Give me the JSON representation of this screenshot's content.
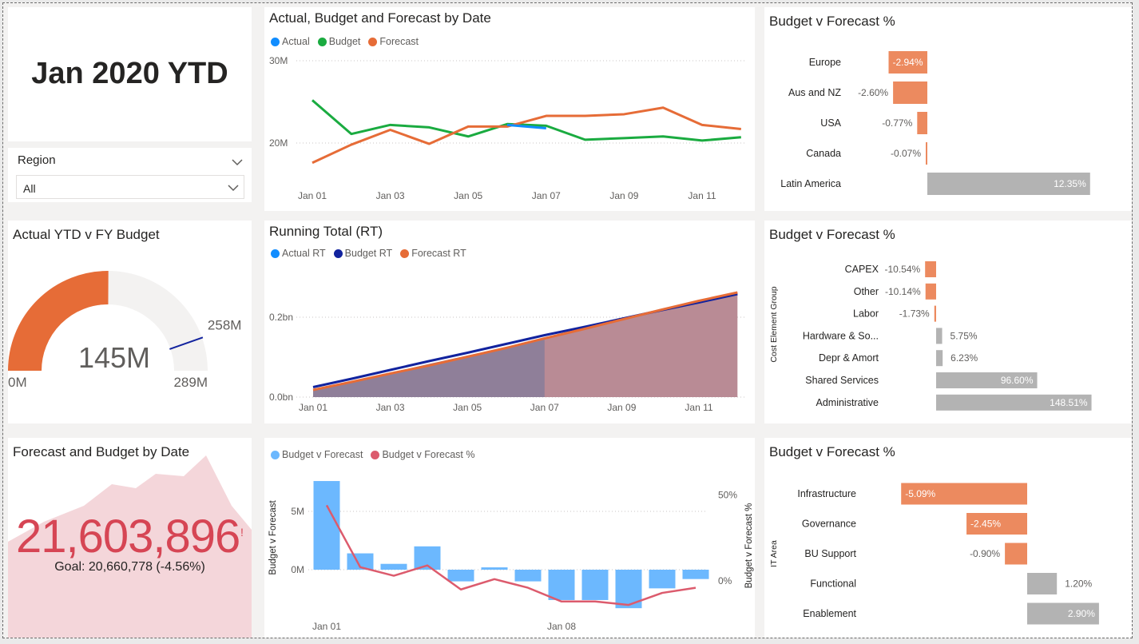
{
  "header": {
    "title": "Jan 2020 YTD"
  },
  "slicer": {
    "label": "Region",
    "value": "All"
  },
  "gauge": {
    "title": "Actual YTD v FY Budget",
    "value_label": "145M",
    "min_label": "0M",
    "max_label": "289M",
    "target_label": "258M",
    "value": 145,
    "min": 0,
    "max": 289,
    "target": 258,
    "colors": {
      "fill": "#e66c37",
      "track": "#f3f2f1",
      "target": "#12239e"
    }
  },
  "kpi": {
    "title": "Forecast and Budget by Date",
    "value": "21,603,896",
    "alert": "!",
    "goal": "Goal: 20,660,778 (-4.56%)",
    "colors": {
      "value": "#d64554",
      "area": "#f4d6da"
    }
  },
  "icons": {
    "slicer_header": "chevron-down-icon",
    "slicer_dropdown": "chevron-down-icon"
  },
  "chart_line": {
    "title": "Actual, Budget and Forecast by Date",
    "legend": [
      "Actual",
      "Budget",
      "Forecast"
    ],
    "colors": {
      "Actual": "#118dff",
      "Budget": "#1aab40",
      "Forecast": "#e66c37"
    },
    "y_ticks": [
      "30M",
      "20M"
    ],
    "x_ticks": [
      "Jan 01",
      "Jan 03",
      "Jan 05",
      "Jan 07",
      "Jan 09",
      "Jan 11"
    ]
  },
  "chart_rt": {
    "title": "Running Total (RT)",
    "legend": [
      "Actual RT",
      "Budget RT",
      "Forecast RT"
    ],
    "colors": {
      "Actual RT": "#118dff",
      "Budget RT": "#12239e",
      "Forecast RT": "#e66c37"
    },
    "y_ticks": [
      "0.2bn",
      "0.0bn"
    ],
    "x_ticks": [
      "Jan 01",
      "Jan 03",
      "Jan 05",
      "Jan 07",
      "Jan 09",
      "Jan 11"
    ]
  },
  "chart_combo": {
    "legend": [
      "Budget v Forecast",
      "Budget v Forecast %"
    ],
    "colors": {
      "bar": "#6cb8fe",
      "line": "#dc5b6d"
    },
    "y_title": "Budget v Forecast",
    "y2_title": "Budget v Forecast %",
    "y_ticks": [
      "5M",
      "0M"
    ],
    "y2_ticks": [
      "50%",
      "0%"
    ],
    "x_ticks": [
      "Jan 01",
      "Jan 08"
    ]
  },
  "region_bars": {
    "title": "Budget v Forecast %",
    "colors": {
      "negative": "#ec8a5f",
      "positive": "#b3b3b3"
    },
    "items": [
      {
        "label": "Europe",
        "value": -2.94,
        "text": "-2.94%"
      },
      {
        "label": "Aus and NZ",
        "value": -2.6,
        "text": "-2.60%"
      },
      {
        "label": "USA",
        "value": -0.77,
        "text": "-0.77%"
      },
      {
        "label": "Canada",
        "value": -0.07,
        "text": "-0.07%"
      },
      {
        "label": "Latin America",
        "value": 12.35,
        "text": "12.35%"
      }
    ]
  },
  "cost_bars": {
    "title": "Budget v Forecast %",
    "axis_title": "Cost Element Group",
    "items": [
      {
        "label": "CAPEX",
        "value": -10.54,
        "text": "-10.54%"
      },
      {
        "label": "Other",
        "value": -10.14,
        "text": "-10.14%"
      },
      {
        "label": "Labor",
        "value": -1.73,
        "text": "-1.73%"
      },
      {
        "label": "Hardware & So...",
        "value": 5.75,
        "text": "5.75%"
      },
      {
        "label": "Depr & Amort",
        "value": 6.23,
        "text": "6.23%"
      },
      {
        "label": "Shared Services",
        "value": 96.6,
        "text": "96.60%"
      },
      {
        "label": "Administrative",
        "value": 148.51,
        "text": "148.51%"
      }
    ]
  },
  "it_bars": {
    "title": "Budget v Forecast %",
    "axis_title": "IT Area",
    "items": [
      {
        "label": "Infrastructure",
        "value": -5.09,
        "text": "-5.09%"
      },
      {
        "label": "Governance",
        "value": -2.45,
        "text": "-2.45%"
      },
      {
        "label": "BU Support",
        "value": -0.9,
        "text": "-0.90%"
      },
      {
        "label": "Functional",
        "value": 1.2,
        "text": "1.20%"
      },
      {
        "label": "Enablement",
        "value": 2.9,
        "text": "2.90%"
      }
    ]
  },
  "chart_data": [
    {
      "type": "line",
      "title": "Actual, Budget and Forecast by Date",
      "x": [
        "Jan 01",
        "Jan 02",
        "Jan 03",
        "Jan 04",
        "Jan 05",
        "Jan 06",
        "Jan 07",
        "Jan 08",
        "Jan 09",
        "Jan 10",
        "Jan 11",
        "Jan 12"
      ],
      "ylim": [
        15,
        32
      ],
      "series": [
        {
          "name": "Actual",
          "values": [
            null,
            null,
            null,
            null,
            null,
            22.2,
            21.8,
            null,
            null,
            null,
            null,
            null
          ]
        },
        {
          "name": "Budget",
          "values": [
            25.2,
            21.1,
            22.2,
            21.9,
            20.8,
            22.3,
            22.1,
            20.4,
            20.6,
            20.8,
            20.3,
            20.7
          ]
        },
        {
          "name": "Forecast",
          "values": [
            17.6,
            19.8,
            21.6,
            19.9,
            22.0,
            22.0,
            23.3,
            23.3,
            23.5,
            24.3,
            22.2,
            21.7
          ]
        }
      ]
    },
    {
      "type": "area",
      "title": "Running Total (RT)",
      "x": [
        "Jan 01",
        "Jan 02",
        "Jan 03",
        "Jan 04",
        "Jan 05",
        "Jan 06",
        "Jan 07",
        "Jan 08",
        "Jan 09",
        "Jan 10",
        "Jan 11",
        "Jan 12"
      ],
      "ylim": [
        0,
        0.33
      ],
      "series": [
        {
          "name": "Actual RT",
          "values": [
            0.018,
            0.039,
            0.061,
            0.083,
            0.104,
            0.125,
            0.145,
            null,
            null,
            null,
            null,
            null
          ]
        },
        {
          "name": "Budget RT",
          "values": [
            0.025,
            0.046,
            0.068,
            0.09,
            0.111,
            0.133,
            0.155,
            0.175,
            0.196,
            0.217,
            0.237,
            0.258
          ]
        },
        {
          "name": "Forecast RT",
          "values": [
            0.018,
            0.038,
            0.059,
            0.079,
            0.101,
            0.123,
            0.147,
            0.17,
            0.194,
            0.218,
            0.241,
            0.262
          ]
        }
      ]
    },
    {
      "type": "bar",
      "title": "",
      "x": [
        "Jan 01",
        "Jan 02",
        "Jan 03",
        "Jan 04",
        "Jan 05",
        "Jan 06",
        "Jan 07",
        "Jan 08",
        "Jan 09",
        "Jan 10",
        "Jan 11",
        "Jan 12"
      ],
      "series": [
        {
          "name": "Budget v Forecast",
          "values": [
            7.6,
            1.4,
            0.5,
            2.0,
            -1.0,
            0.2,
            -1.0,
            -2.6,
            -2.6,
            -3.3,
            -1.6,
            -0.8
          ]
        },
        {
          "name": "Budget v Forecast %",
          "values": [
            44,
            8,
            3,
            9,
            -5,
            1,
            -4,
            -12,
            -12,
            -14,
            -7,
            -4
          ]
        }
      ],
      "ylim": [
        -4,
        8
      ],
      "y2lim": [
        -20,
        55
      ]
    },
    {
      "type": "bar",
      "title": "Budget v Forecast %",
      "categories": [
        "Europe",
        "Aus and NZ",
        "USA",
        "Canada",
        "Latin America"
      ],
      "values": [
        -2.94,
        -2.6,
        -0.77,
        -0.07,
        12.35
      ]
    },
    {
      "type": "bar",
      "title": "Budget v Forecast %",
      "categories": [
        "CAPEX",
        "Other",
        "Labor",
        "Hardware & So...",
        "Depr & Amort",
        "Shared Services",
        "Administrative"
      ],
      "values": [
        -10.54,
        -10.14,
        -1.73,
        5.75,
        6.23,
        96.6,
        148.51
      ]
    },
    {
      "type": "bar",
      "title": "Budget v Forecast %",
      "categories": [
        "Infrastructure",
        "Governance",
        "BU Support",
        "Functional",
        "Enablement"
      ],
      "values": [
        -5.09,
        -2.45,
        -0.9,
        1.2,
        2.9
      ]
    }
  ]
}
